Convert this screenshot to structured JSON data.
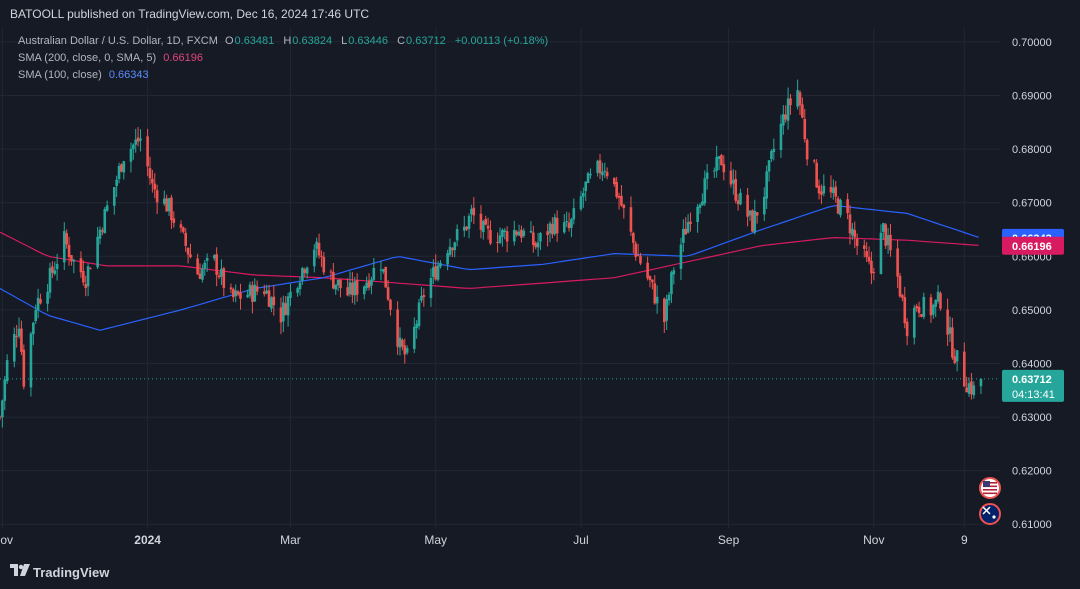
{
  "header": {
    "publisher": "BATOOLL published on TradingView.com, Dec 16, 2024 17:46 UTC"
  },
  "legend": {
    "instrument": "Australian Dollar / U.S. Dollar, 1D, FXCM",
    "ohlc": [
      {
        "label": "O",
        "value": "0.63481"
      },
      {
        "label": "H",
        "value": "0.63824"
      },
      {
        "label": "L",
        "value": "0.63446"
      },
      {
        "label": "C",
        "value": "0.63712"
      }
    ],
    "change": "+0.00113 (+0.18%)",
    "sma200_label": "SMA (200, close, 0, SMA, 5)",
    "sma200_value": "0.66196",
    "sma100_label": "SMA (100, close)",
    "sma100_value": "0.66343"
  },
  "colors": {
    "background": "#161a25",
    "grid": "#232733",
    "up": "#26a69a",
    "down": "#ef5350",
    "sma200": "#d81b60",
    "sma100": "#2962ff",
    "axis_text": "#d1d4dc"
  },
  "price_badges": {
    "sma100": "0.66343",
    "sma200": "0.66196",
    "last": "0.63712",
    "countdown": "04:13:41"
  },
  "event_icons": [
    "us-flag-icon",
    "australia-flag-icon"
  ],
  "footer": {
    "brand": "TradingView"
  },
  "chart_data": {
    "type": "candlestick",
    "title": "Australian Dollar / U.S. Dollar, 1D, FXCM",
    "y_ticks": [
      "0.70000",
      "0.69000",
      "0.68000",
      "0.67000",
      "0.66000",
      "0.65000",
      "0.64000",
      "0.63000",
      "0.62000",
      "0.61000"
    ],
    "ylim": [
      0.6093,
      0.7026
    ],
    "x_ticks": [
      "Nov",
      "2024",
      "Mar",
      "May",
      "Jul",
      "Sep",
      "Nov",
      "9"
    ],
    "x_tick_dates": [
      "2023-11-01",
      "2024-01-01",
      "2024-03-01",
      "2024-05-01",
      "2024-07-01",
      "2024-09-01",
      "2024-11-01",
      "2024-12-09"
    ],
    "xlim": [
      "2023-10-31",
      "2024-12-24"
    ],
    "grid": true,
    "legend_position": "top-left",
    "last_close": 0.63712,
    "series": [
      {
        "name": "SMA (200, close, 0, SMA, 5)",
        "last": 0.66196
      },
      {
        "name": "SMA (100, close)",
        "last": 0.66343
      }
    ],
    "price_path": [
      [
        "2023-10-31",
        0.63
      ],
      [
        "2023-11-03",
        0.64
      ],
      [
        "2023-11-08",
        0.648
      ],
      [
        "2023-11-10",
        0.637
      ],
      [
        "2023-11-15",
        0.651
      ],
      [
        "2023-11-21",
        0.656
      ],
      [
        "2023-11-27",
        0.663
      ],
      [
        "2023-12-01",
        0.659
      ],
      [
        "2023-12-06",
        0.656
      ],
      [
        "2023-12-12",
        0.665
      ],
      [
        "2023-12-18",
        0.673
      ],
      [
        "2023-12-22",
        0.679
      ],
      [
        "2023-12-29",
        0.682
      ],
      [
        "2024-01-03",
        0.673
      ],
      [
        "2024-01-10",
        0.669
      ],
      [
        "2024-01-15",
        0.664
      ],
      [
        "2024-01-22",
        0.657
      ],
      [
        "2024-01-29",
        0.659
      ],
      [
        "2024-02-05",
        0.652
      ],
      [
        "2024-02-12",
        0.653
      ],
      [
        "2024-02-19",
        0.654
      ],
      [
        "2024-02-26",
        0.649
      ],
      [
        "2024-03-04",
        0.656
      ],
      [
        "2024-03-11",
        0.662
      ],
      [
        "2024-03-18",
        0.656
      ],
      [
        "2024-03-25",
        0.653
      ],
      [
        "2024-04-01",
        0.655
      ],
      [
        "2024-04-08",
        0.659
      ],
      [
        "2024-04-12",
        0.651
      ],
      [
        "2024-04-16",
        0.643
      ],
      [
        "2024-04-19",
        0.641
      ],
      [
        "2024-04-26",
        0.653
      ],
      [
        "2024-05-06",
        0.662
      ],
      [
        "2024-05-13",
        0.665
      ],
      [
        "2024-05-16",
        0.668
      ],
      [
        "2024-05-22",
        0.664
      ],
      [
        "2024-05-29",
        0.664
      ],
      [
        "2024-06-05",
        0.665
      ],
      [
        "2024-06-12",
        0.662
      ],
      [
        "2024-06-19",
        0.666
      ],
      [
        "2024-06-26",
        0.665
      ],
      [
        "2024-07-03",
        0.673
      ],
      [
        "2024-07-08",
        0.676
      ],
      [
        "2024-07-11",
        0.677
      ],
      [
        "2024-07-17",
        0.671
      ],
      [
        "2024-07-24",
        0.661
      ],
      [
        "2024-07-30",
        0.655
      ],
      [
        "2024-08-05",
        0.648
      ],
      [
        "2024-08-09",
        0.658
      ],
      [
        "2024-08-16",
        0.668
      ],
      [
        "2024-08-22",
        0.673
      ],
      [
        "2024-08-29",
        0.678
      ],
      [
        "2024-09-04",
        0.672
      ],
      [
        "2024-09-11",
        0.666
      ],
      [
        "2024-09-16",
        0.672
      ],
      [
        "2024-09-20",
        0.68
      ],
      [
        "2024-09-25",
        0.687
      ],
      [
        "2024-09-30",
        0.691
      ],
      [
        "2024-10-04",
        0.68
      ],
      [
        "2024-10-09",
        0.673
      ],
      [
        "2024-10-15",
        0.671
      ],
      [
        "2024-10-21",
        0.667
      ],
      [
        "2024-10-25",
        0.662
      ],
      [
        "2024-10-31",
        0.657
      ],
      [
        "2024-11-05",
        0.665
      ],
      [
        "2024-11-11",
        0.656
      ],
      [
        "2024-11-15",
        0.647
      ],
      [
        "2024-11-19",
        0.651
      ],
      [
        "2024-11-25",
        0.65
      ],
      [
        "2024-11-29",
        0.652
      ],
      [
        "2024-12-04",
        0.643
      ],
      [
        "2024-12-09",
        0.637
      ],
      [
        "2024-12-13",
        0.635
      ],
      [
        "2024-12-16",
        0.637
      ]
    ],
    "sma200_path": [
      [
        "2023-10-31",
        0.6645
      ],
      [
        "2023-11-20",
        0.66
      ],
      [
        "2023-12-15",
        0.6582
      ],
      [
        "2024-01-15",
        0.6582
      ],
      [
        "2024-02-15",
        0.6565
      ],
      [
        "2024-03-15",
        0.656
      ],
      [
        "2024-04-15",
        0.655
      ],
      [
        "2024-05-15",
        0.654
      ],
      [
        "2024-06-15",
        0.655
      ],
      [
        "2024-07-15",
        0.656
      ],
      [
        "2024-08-15",
        0.659
      ],
      [
        "2024-09-15",
        0.662
      ],
      [
        "2024-10-15",
        0.6635
      ],
      [
        "2024-11-15",
        0.663
      ],
      [
        "2024-12-16",
        0.662
      ]
    ],
    "sma100_path": [
      [
        "2023-10-31",
        0.654
      ],
      [
        "2023-11-20",
        0.649
      ],
      [
        "2023-12-12",
        0.6462
      ],
      [
        "2024-01-15",
        0.65
      ],
      [
        "2024-02-15",
        0.654
      ],
      [
        "2024-03-15",
        0.656
      ],
      [
        "2024-04-15",
        0.66
      ],
      [
        "2024-05-15",
        0.6575
      ],
      [
        "2024-06-15",
        0.6585
      ],
      [
        "2024-07-15",
        0.6605
      ],
      [
        "2024-08-15",
        0.66
      ],
      [
        "2024-09-15",
        0.665
      ],
      [
        "2024-10-15",
        0.6695
      ],
      [
        "2024-11-15",
        0.668
      ],
      [
        "2024-12-16",
        0.6634
      ]
    ]
  }
}
